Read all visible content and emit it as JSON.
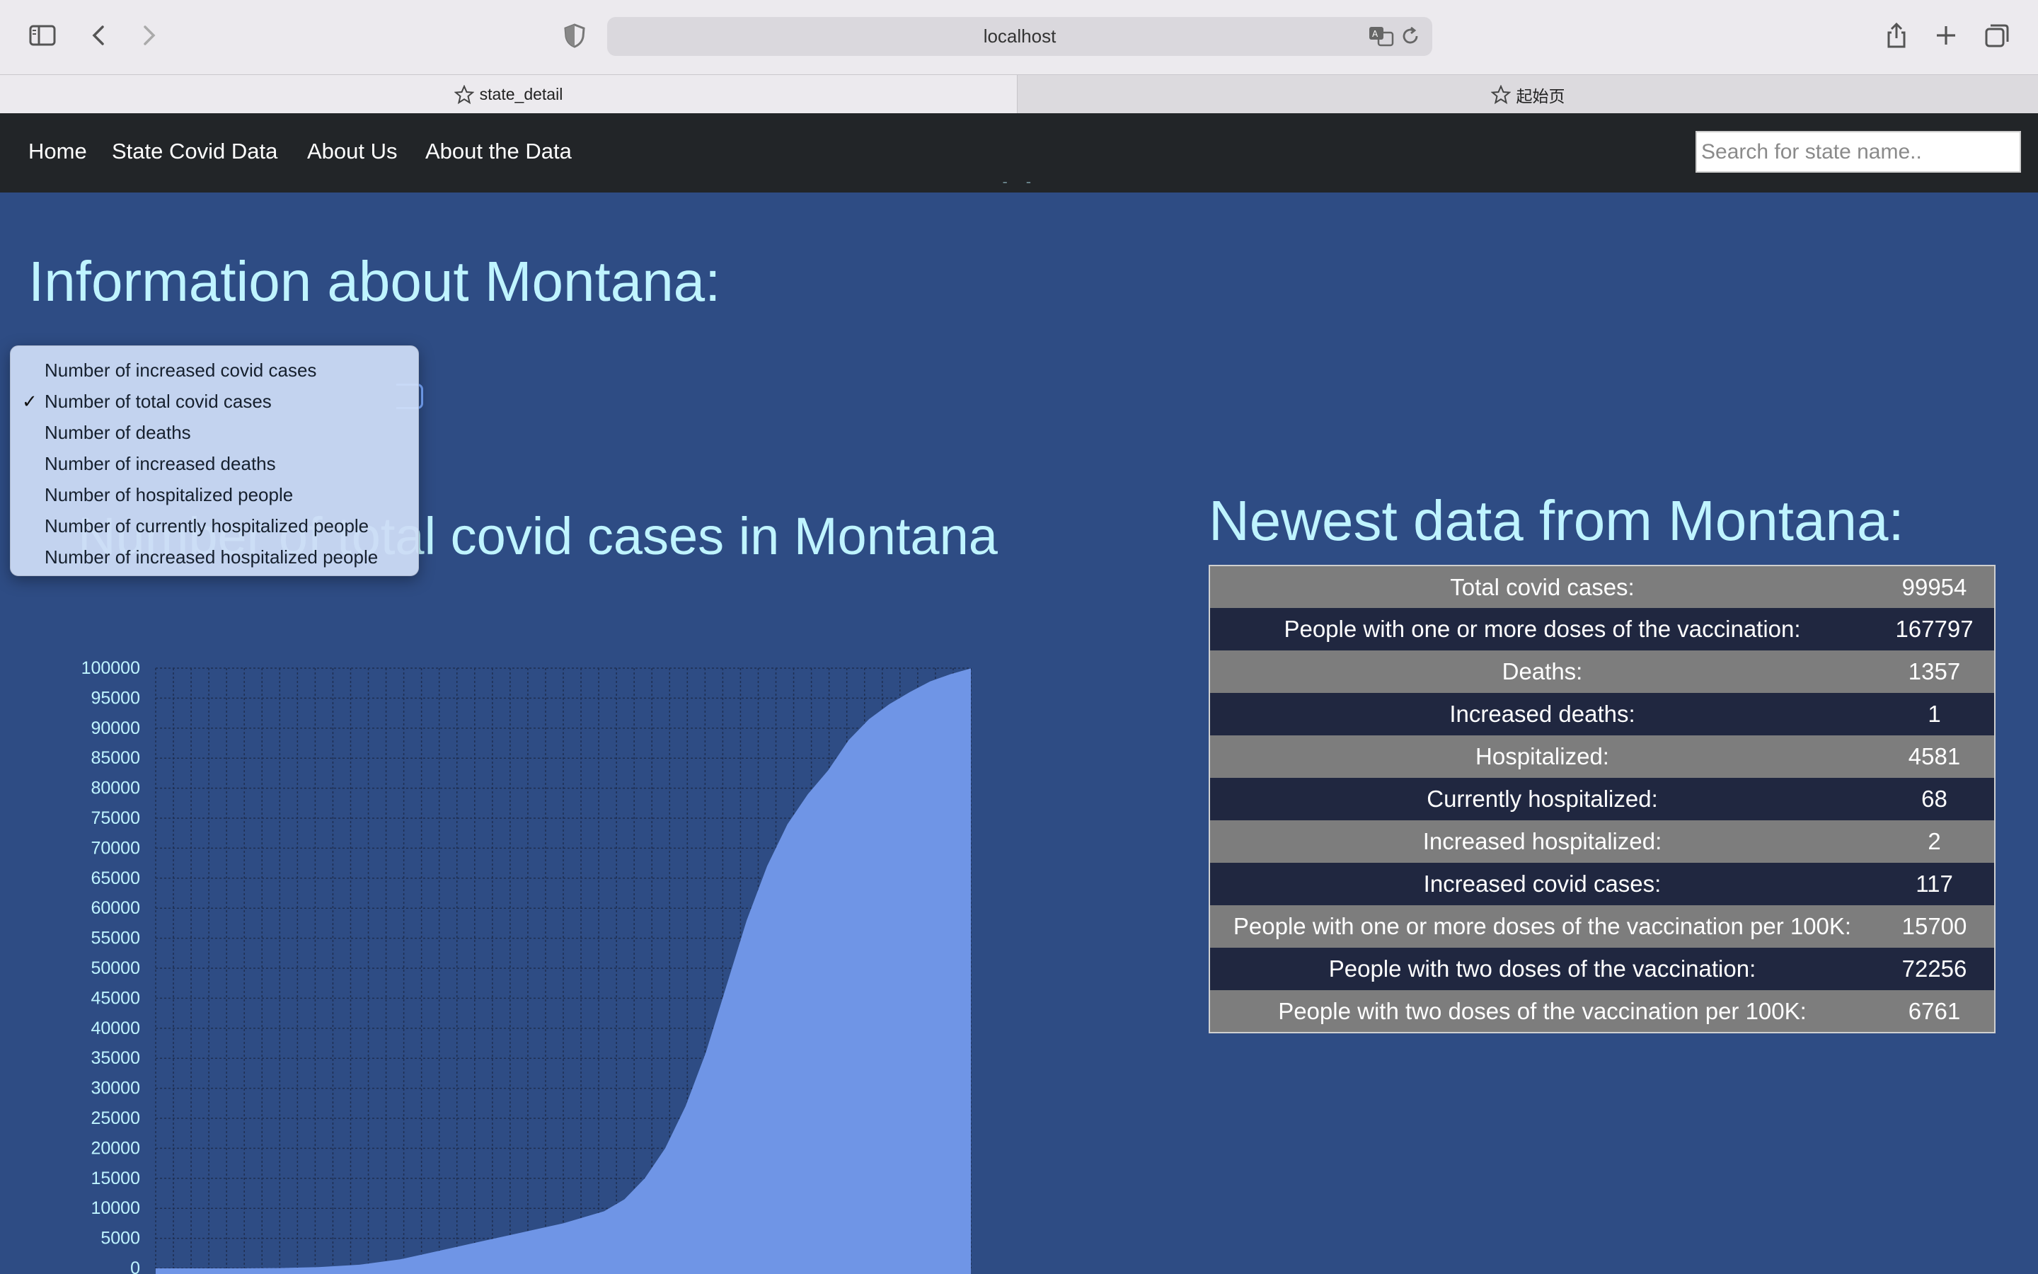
{
  "browser": {
    "url": "localhost",
    "tabs": [
      {
        "label": "state_detail"
      },
      {
        "label": "起始页"
      }
    ]
  },
  "navbar": {
    "links": [
      "Home",
      "State Covid Data",
      "About Us",
      "About the Data"
    ],
    "search_placeholder": "Search for state name.."
  },
  "page": {
    "info_heading": "Information about Montana:",
    "partial_heading": "State Covid Data",
    "chart_heading": "Number of total covid cases in Montana",
    "table_heading": "Newest data from Montana:"
  },
  "dropdown": {
    "selected_index": 1,
    "options": [
      "Number of increased covid cases",
      "Number of total covid cases",
      "Number of deaths",
      "Number of increased deaths",
      "Number of hospitalized people",
      "Number of currently hospitalized people",
      "Number of increased hospitalized people"
    ]
  },
  "table": {
    "rows": [
      {
        "label": "Total covid cases:",
        "value": "99954"
      },
      {
        "label": "People with one or more doses of the vaccination:",
        "value": "167797"
      },
      {
        "label": "Deaths:",
        "value": "1357"
      },
      {
        "label": "Increased deaths:",
        "value": "1"
      },
      {
        "label": "Hospitalized:",
        "value": "4581"
      },
      {
        "label": "Currently hospitalized:",
        "value": "68"
      },
      {
        "label": "Increased hospitalized:",
        "value": "2"
      },
      {
        "label": "Increased covid cases:",
        "value": "117"
      },
      {
        "label": "People with one or more doses of the vaccination per 100K:",
        "value": "15700"
      },
      {
        "label": "People with two doses of the vaccination:",
        "value": "72256"
      },
      {
        "label": "People with two doses of the vaccination per 100K:",
        "value": "6761"
      }
    ]
  },
  "colors": {
    "page_bg": "#2e4c84",
    "heading": "#bff4ff",
    "area_fill": "#6f95e6",
    "navbar_bg": "#222528"
  },
  "chart_data": {
    "type": "area",
    "title": "Number of total covid cases in Montana",
    "xlabel": "",
    "ylabel": "",
    "ylim": [
      0,
      100000
    ],
    "y_ticks": [
      0,
      5000,
      10000,
      15000,
      20000,
      25000,
      30000,
      35000,
      40000,
      45000,
      50000,
      55000,
      60000,
      65000,
      70000,
      75000,
      80000,
      85000,
      90000,
      95000,
      100000
    ],
    "grid": true,
    "x_range": [
      0,
      200
    ],
    "series": [
      {
        "name": "Total covid cases",
        "x": [
          0,
          10,
          20,
          30,
          40,
          50,
          60,
          70,
          80,
          90,
          100,
          110,
          115,
          120,
          125,
          130,
          135,
          140,
          145,
          150,
          155,
          160,
          165,
          170,
          175,
          180,
          185,
          190,
          195,
          200
        ],
        "values": [
          0,
          0,
          0,
          50,
          200,
          600,
          1500,
          3000,
          4500,
          6000,
          7500,
          9500,
          11500,
          15000,
          20000,
          27000,
          36000,
          47000,
          58000,
          67000,
          74000,
          79000,
          83000,
          88000,
          91500,
          94000,
          96000,
          97800,
          99000,
          99954
        ]
      }
    ]
  }
}
